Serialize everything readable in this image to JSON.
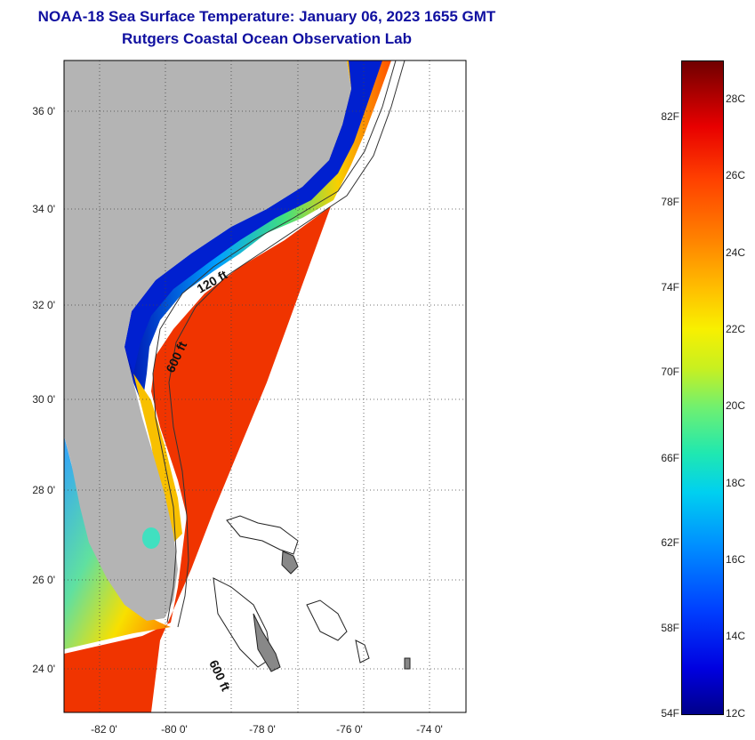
{
  "title": "NOAA-18 Sea Surface Temperature:  January 06, 2023 1655 GMT",
  "subtitle": "Rutgers Coastal Ocean Observation Lab",
  "map": {
    "lat_labels": [
      "36 0'",
      "34 0'",
      "32 0'",
      "30 0'",
      "28 0'",
      "26 0'",
      "24 0'"
    ],
    "lon_labels": [
      "-82 0'",
      "-80 0'",
      "-78 0'",
      "-76 0'",
      "-74 0'"
    ],
    "contour_labels": [
      "120 ft",
      "600 ft",
      "600 ft"
    ],
    "colors": {
      "land": "#b4b4b4",
      "warm": "#f02a00",
      "cool": "#0030d0",
      "contour": "#333333"
    }
  },
  "colorbar": {
    "fahrenheit": [
      "82F",
      "78F",
      "74F",
      "70F",
      "66F",
      "62F",
      "58F",
      "54F"
    ],
    "celsius": [
      "28C",
      "26C",
      "24C",
      "22C",
      "20C",
      "18C",
      "16C",
      "14C",
      "12C"
    ]
  }
}
